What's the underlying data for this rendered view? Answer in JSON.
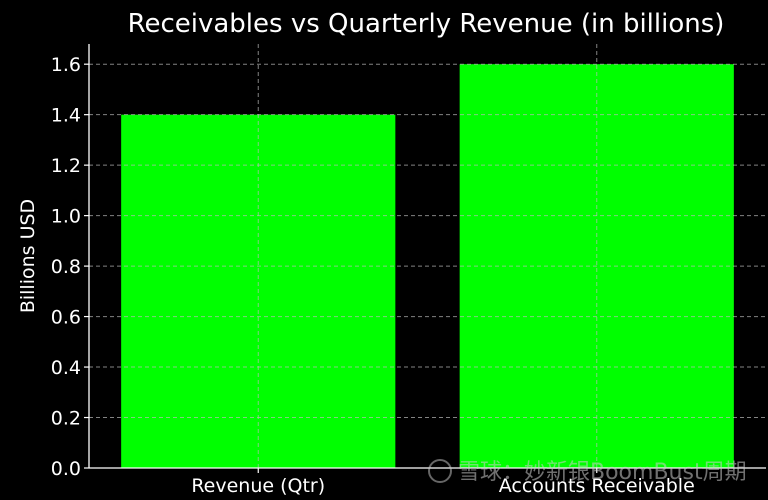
{
  "chart_data": {
    "type": "bar",
    "title": "Receivables vs Quarterly Revenue (in billions)",
    "xlabel": "",
    "ylabel": "Billions USD",
    "categories": [
      "Revenue (Qtr)",
      "Accounts Receivable"
    ],
    "values": [
      1.4,
      1.6
    ],
    "ylim": [
      0,
      1.68
    ],
    "yticks": [
      "0.0",
      "0.2",
      "0.4",
      "0.6",
      "0.8",
      "1.0",
      "1.2",
      "1.4",
      "1.6"
    ],
    "grid": true,
    "bar_color": "#00ff00",
    "background": "#000000"
  },
  "watermark": "雪球：妙新银BoomBust周期"
}
